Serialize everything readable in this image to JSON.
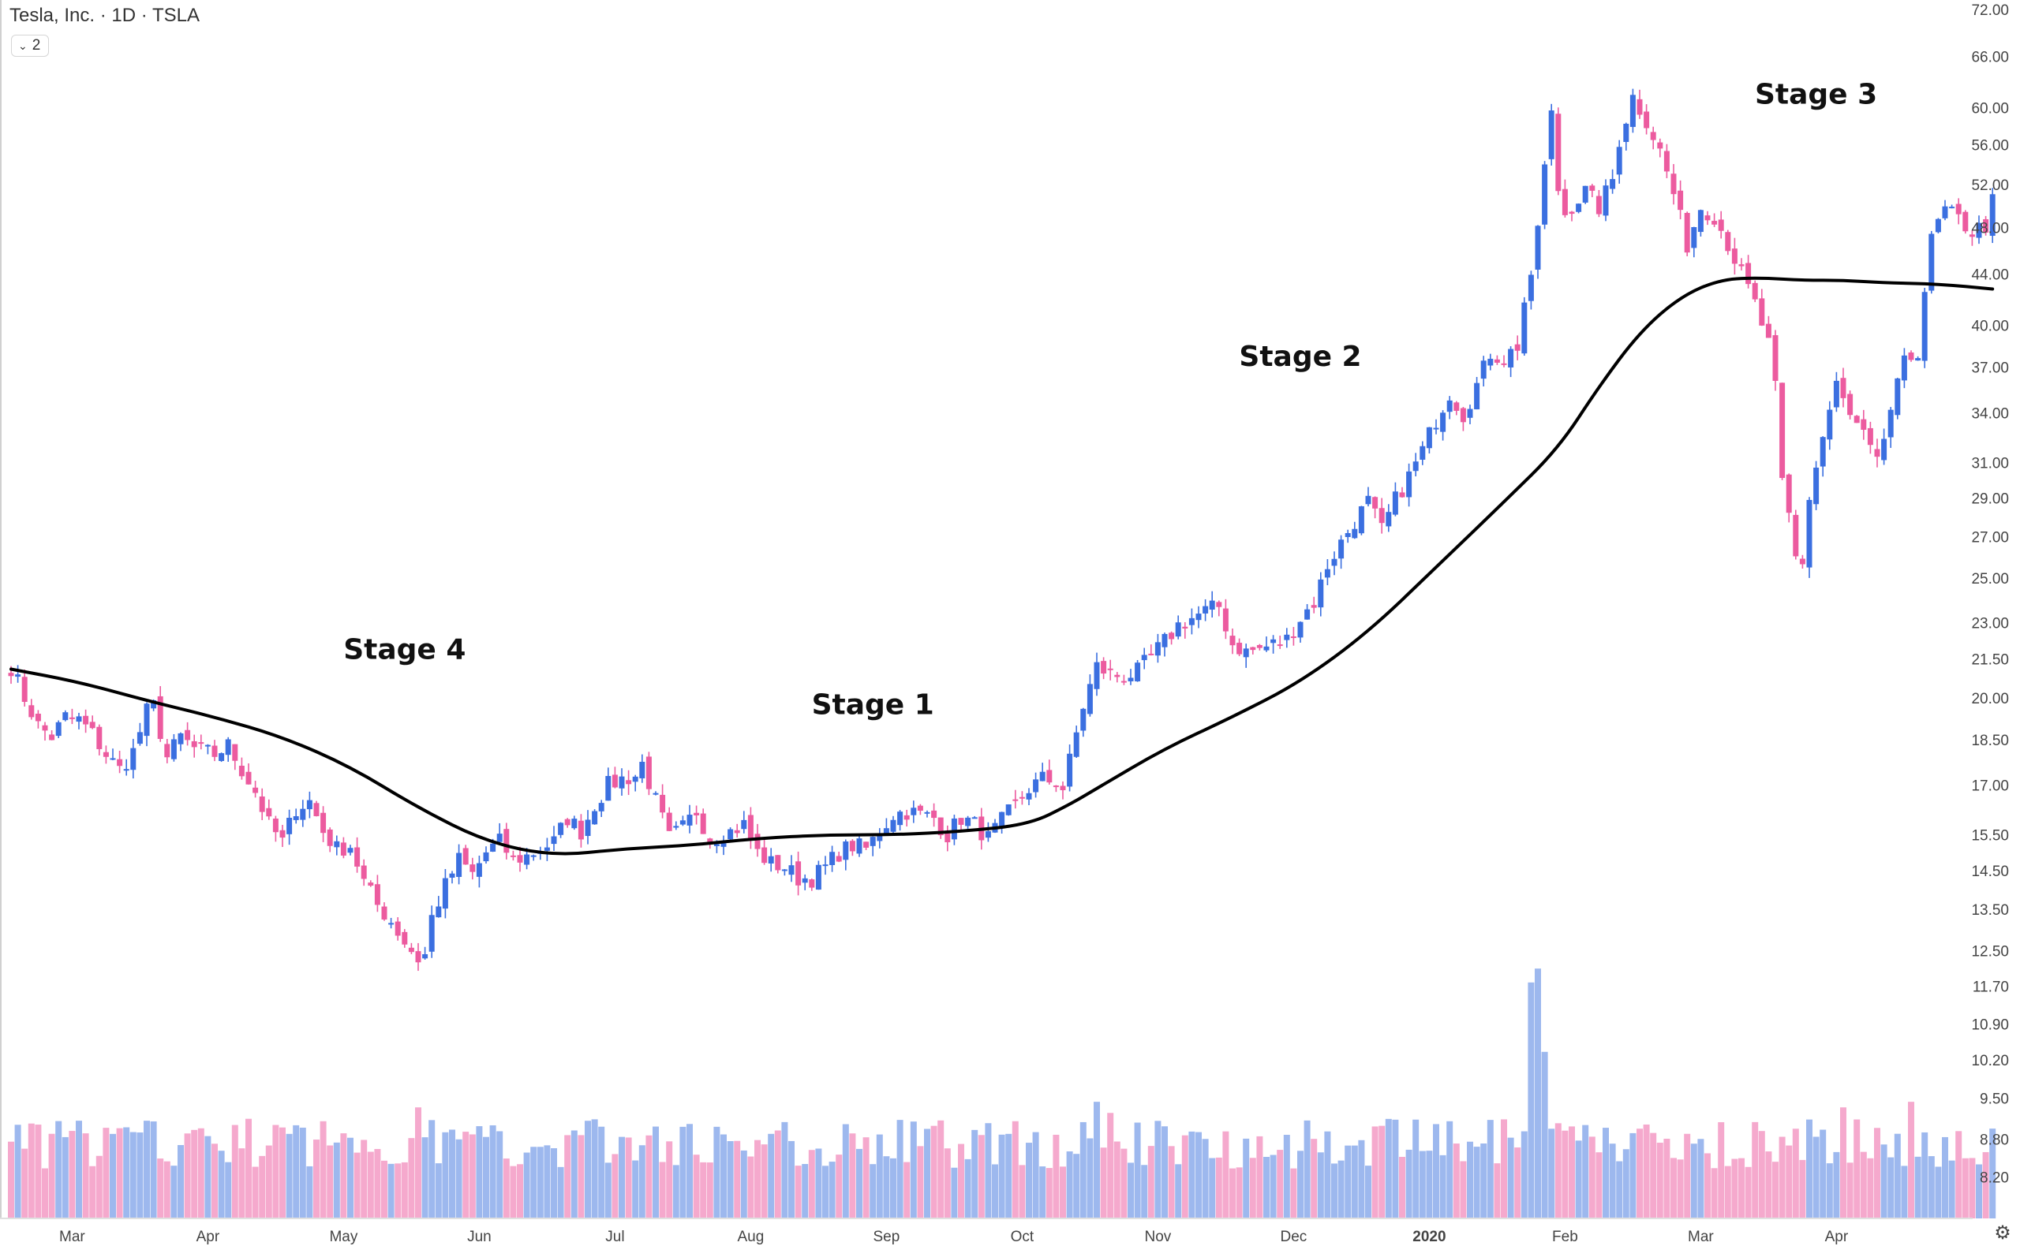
{
  "header": {
    "title": "Tesla, Inc. · 1D · TSLA",
    "legend_count": "2"
  },
  "icons": {
    "collapse": "chevron-down-icon",
    "settings": "settings-icon"
  },
  "colors": {
    "up": "#3b6fe0",
    "down": "#ec5b9f",
    "up_volume": "#9db8ee",
    "down_volume": "#f5a9cd",
    "sma": "#000000",
    "axis": "#d8d8d8"
  },
  "chart_data": {
    "type": "candlestick",
    "symbol": "TSLA",
    "interval": "1D",
    "y_scale": "log",
    "ylim": [
      7.9,
      72
    ],
    "y_ticks": [
      "72.00",
      "66.00",
      "60.00",
      "56.00",
      "52.00",
      "48.00",
      "44.00",
      "40.00",
      "37.00",
      "34.00",
      "31.00",
      "29.00",
      "27.00",
      "25.00",
      "23.00",
      "21.50",
      "20.00",
      "18.50",
      "17.00",
      "15.50",
      "14.50",
      "13.50",
      "12.50",
      "11.70",
      "10.90",
      "10.20",
      "9.50",
      "8.80",
      "8.20"
    ],
    "x_tick_labels": [
      "Mar",
      "Apr",
      "May",
      "Jun",
      "Jul",
      "Aug",
      "Sep",
      "Oct",
      "Nov",
      "Dec",
      "2020",
      "Feb",
      "Mar",
      "Apr"
    ],
    "annotations": [
      {
        "text": "Stage 4",
        "date_index": 2.9,
        "price": 21.5
      },
      {
        "text": "Stage 1",
        "date_index": 6.35,
        "price": 19.4
      },
      {
        "text": "Stage 2",
        "date_index": 9.5,
        "price": 37.1
      },
      {
        "text": "Stage 3",
        "date_index": 13.3,
        "price": 60.4
      }
    ],
    "close_path": [
      [
        0.0,
        21.2
      ],
      [
        0.1,
        20.0
      ],
      [
        0.2,
        19.0
      ],
      [
        0.3,
        18.6
      ],
      [
        0.4,
        19.3
      ],
      [
        0.5,
        19.2
      ],
      [
        0.6,
        18.7
      ],
      [
        0.7,
        18.0
      ],
      [
        0.8,
        17.5
      ],
      [
        0.9,
        18.1
      ],
      [
        1.0,
        19.5
      ],
      [
        1.05,
        19.7
      ],
      [
        1.15,
        17.9
      ],
      [
        1.25,
        18.6
      ],
      [
        1.35,
        18.2
      ],
      [
        1.5,
        18.0
      ],
      [
        1.6,
        18.3
      ],
      [
        1.7,
        17.5
      ],
      [
        1.8,
        16.8
      ],
      [
        1.9,
        15.8
      ],
      [
        2.0,
        15.3
      ],
      [
        2.1,
        16.3
      ],
      [
        2.2,
        16.5
      ],
      [
        2.3,
        15.6
      ],
      [
        2.4,
        15.1
      ],
      [
        2.5,
        15.2
      ],
      [
        2.6,
        14.2
      ],
      [
        2.7,
        13.6
      ],
      [
        2.8,
        13.2
      ],
      [
        2.9,
        12.7
      ],
      [
        3.0,
        12.3
      ],
      [
        3.05,
        12.4
      ],
      [
        3.1,
        13.3
      ],
      [
        3.2,
        14.1
      ],
      [
        3.3,
        14.8
      ],
      [
        3.4,
        14.4
      ],
      [
        3.5,
        15.0
      ],
      [
        3.6,
        15.3
      ],
      [
        3.7,
        14.8
      ],
      [
        3.8,
        14.9
      ],
      [
        3.9,
        15.1
      ],
      [
        4.0,
        15.3
      ],
      [
        4.1,
        16.0
      ],
      [
        4.2,
        15.6
      ],
      [
        4.3,
        16.4
      ],
      [
        4.4,
        17.0
      ],
      [
        4.5,
        17.2
      ],
      [
        4.6,
        17.3
      ],
      [
        4.65,
        17.7
      ],
      [
        4.85,
        15.4
      ],
      [
        4.95,
        15.7
      ],
      [
        5.05,
        16.2
      ],
      [
        5.15,
        15.4
      ],
      [
        5.3,
        15.6
      ],
      [
        5.4,
        15.8
      ],
      [
        5.5,
        15.0
      ],
      [
        5.6,
        14.7
      ],
      [
        5.7,
        14.6
      ],
      [
        5.8,
        14.3
      ],
      [
        5.9,
        14.3
      ],
      [
        6.0,
        14.6
      ],
      [
        6.1,
        15.0
      ],
      [
        6.2,
        15.2
      ],
      [
        6.3,
        15.1
      ],
      [
        6.4,
        15.6
      ],
      [
        6.5,
        16.1
      ],
      [
        6.6,
        16.2
      ],
      [
        6.7,
        16.1
      ],
      [
        6.8,
        16.0
      ],
      [
        6.9,
        15.5
      ],
      [
        7.0,
        16.0
      ],
      [
        7.1,
        15.8
      ],
      [
        7.2,
        15.4
      ],
      [
        7.3,
        15.9
      ],
      [
        7.4,
        16.4
      ],
      [
        7.5,
        16.9
      ],
      [
        7.6,
        17.2
      ],
      [
        7.7,
        17.1
      ],
      [
        7.75,
        16.9
      ],
      [
        7.9,
        19.7
      ],
      [
        8.0,
        21.2
      ],
      [
        8.1,
        20.9
      ],
      [
        8.2,
        20.8
      ],
      [
        8.3,
        21.0
      ],
      [
        8.4,
        21.6
      ],
      [
        8.5,
        22.2
      ],
      [
        8.6,
        22.9
      ],
      [
        8.7,
        23.2
      ],
      [
        8.8,
        23.5
      ],
      [
        8.9,
        23.7
      ],
      [
        9.0,
        22.1
      ],
      [
        9.1,
        21.8
      ],
      [
        9.2,
        21.9
      ],
      [
        9.3,
        22.1
      ],
      [
        9.4,
        22.3
      ],
      [
        9.5,
        23.2
      ],
      [
        9.6,
        23.9
      ],
      [
        9.7,
        25.6
      ],
      [
        9.8,
        26.7
      ],
      [
        9.9,
        27.8
      ],
      [
        10.0,
        28.8
      ],
      [
        10.1,
        27.3
      ],
      [
        10.2,
        28.9
      ],
      [
        10.3,
        30.2
      ],
      [
        10.4,
        31.7
      ],
      [
        10.5,
        33.6
      ],
      [
        10.6,
        35.3
      ],
      [
        10.7,
        33.9
      ],
      [
        10.8,
        35.8
      ],
      [
        10.9,
        38.0
      ],
      [
        11.0,
        37.6
      ],
      [
        11.1,
        38.5
      ],
      [
        11.15,
        41.8
      ],
      [
        11.2,
        43.2
      ],
      [
        11.28,
        51.6
      ],
      [
        11.35,
        59.1
      ],
      [
        11.42,
        48.8
      ],
      [
        11.5,
        50.0
      ],
      [
        11.6,
        51.3
      ],
      [
        11.7,
        49.8
      ],
      [
        11.8,
        52.5
      ],
      [
        11.85,
        56.5
      ],
      [
        11.95,
        61.2
      ],
      [
        12.05,
        58.6
      ],
      [
        12.15,
        55.3
      ],
      [
        12.25,
        51.1
      ],
      [
        12.35,
        46.5
      ],
      [
        12.45,
        49.9
      ],
      [
        12.55,
        49.1
      ],
      [
        12.65,
        46.6
      ],
      [
        12.75,
        44.0
      ],
      [
        12.85,
        41.6
      ],
      [
        12.95,
        38.6
      ],
      [
        13.0,
        35.5
      ],
      [
        13.05,
        29.8
      ],
      [
        13.12,
        27.4
      ],
      [
        13.18,
        24.6
      ],
      [
        13.25,
        29.0
      ],
      [
        13.35,
        32.5
      ],
      [
        13.45,
        35.8
      ],
      [
        13.55,
        33.7
      ],
      [
        13.65,
        32.5
      ],
      [
        13.75,
        30.8
      ],
      [
        13.85,
        34.2
      ],
      [
        13.95,
        37.2
      ],
      [
        14.05,
        38.2
      ],
      [
        14.1,
        42.8
      ],
      [
        14.15,
        46.8
      ],
      [
        14.2,
        48.4
      ],
      [
        14.25,
        49.5
      ],
      [
        14.35,
        48.7
      ],
      [
        14.45,
        47.6
      ],
      [
        14.55,
        48.2
      ],
      [
        14.62,
        51.2
      ]
    ],
    "sma": [
      [
        0.0,
        21.1
      ],
      [
        0.5,
        20.6
      ],
      [
        1.0,
        19.9
      ],
      [
        1.5,
        19.3
      ],
      [
        2.0,
        18.6
      ],
      [
        2.5,
        17.6
      ],
      [
        3.0,
        16.3
      ],
      [
        3.5,
        15.3
      ],
      [
        4.0,
        14.9
      ],
      [
        4.5,
        15.1
      ],
      [
        5.0,
        15.2
      ],
      [
        5.5,
        15.4
      ],
      [
        6.0,
        15.5
      ],
      [
        6.5,
        15.5
      ],
      [
        7.0,
        15.6
      ],
      [
        7.5,
        15.8
      ],
      [
        7.8,
        16.4
      ],
      [
        8.0,
        16.9
      ],
      [
        8.5,
        18.2
      ],
      [
        9.0,
        19.3
      ],
      [
        9.5,
        20.6
      ],
      [
        10.0,
        22.6
      ],
      [
        10.5,
        25.5
      ],
      [
        11.0,
        28.8
      ],
      [
        11.4,
        31.8
      ],
      [
        11.7,
        35.7
      ],
      [
        12.0,
        39.5
      ],
      [
        12.3,
        42.2
      ],
      [
        12.6,
        43.6
      ],
      [
        12.9,
        43.7
      ],
      [
        13.2,
        43.5
      ],
      [
        13.5,
        43.5
      ],
      [
        13.8,
        43.3
      ],
      [
        14.2,
        43.2
      ],
      [
        14.6,
        42.8
      ]
    ],
    "volume_spikes": [
      [
        0.2,
        0.3
      ],
      [
        1.3,
        0.3
      ],
      [
        2.3,
        0.35
      ],
      [
        3.0,
        0.4
      ],
      [
        4.2,
        0.3
      ],
      [
        5.2,
        0.33
      ],
      [
        8.0,
        0.42
      ],
      [
        8.1,
        0.38
      ],
      [
        10.6,
        0.35
      ],
      [
        11.2,
        0.85
      ],
      [
        11.25,
        0.9
      ],
      [
        11.3,
        0.6
      ],
      [
        13.5,
        0.4
      ],
      [
        14.0,
        0.42
      ]
    ]
  }
}
